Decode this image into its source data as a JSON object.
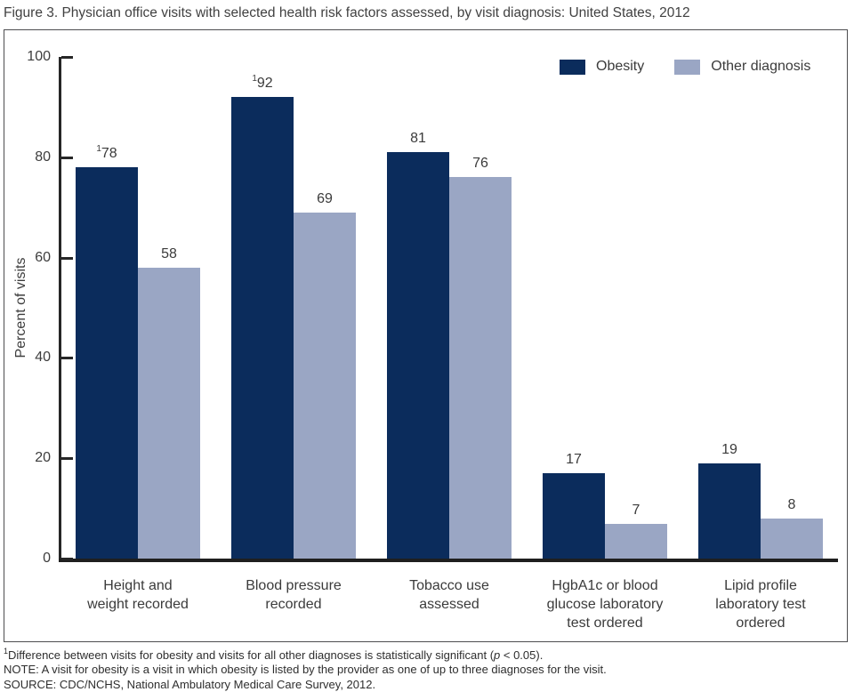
{
  "title": "Figure 3. Physician office visits with selected health risk factors assessed, by visit diagnosis: United States, 2012",
  "chart_data": {
    "type": "bar",
    "categories": [
      "Height and\nweight recorded",
      "Blood pressure\nrecorded",
      "Tobacco use\nassessed",
      "HgbA1c or blood\nglucose laboratory\ntest ordered",
      "Lipid profile\nlaboratory test\nordered"
    ],
    "series": [
      {
        "name": "Obesity",
        "color": "#0b2c5c",
        "values": [
          78,
          92,
          81,
          17,
          19
        ],
        "label_sups": [
          "1",
          "1",
          "",
          "",
          ""
        ]
      },
      {
        "name": "Other diagnosis",
        "color": "#9aa6c4",
        "values": [
          58,
          69,
          76,
          7,
          8
        ],
        "label_sups": [
          "",
          "",
          "",
          "",
          ""
        ]
      }
    ],
    "ylabel": "Percent of visits",
    "ylim": [
      0,
      100
    ],
    "yticks": [
      0,
      20,
      40,
      60,
      80,
      100
    ],
    "grid": false,
    "legend_position": "top-right"
  },
  "footnotes": {
    "significance": {
      "sup": "1",
      "text": "Difference between visits for obesity and visits for all other diagnoses is statistically significant (",
      "p": "p",
      "rest": " < 0.05)."
    },
    "note": "NOTE: A visit for obesity is a visit in which obesity is listed by the provider as one of up to three diagnoses for the visit.",
    "source": "SOURCE: CDC/NCHS, National Ambulatory Medical Care Survey, 2012."
  }
}
